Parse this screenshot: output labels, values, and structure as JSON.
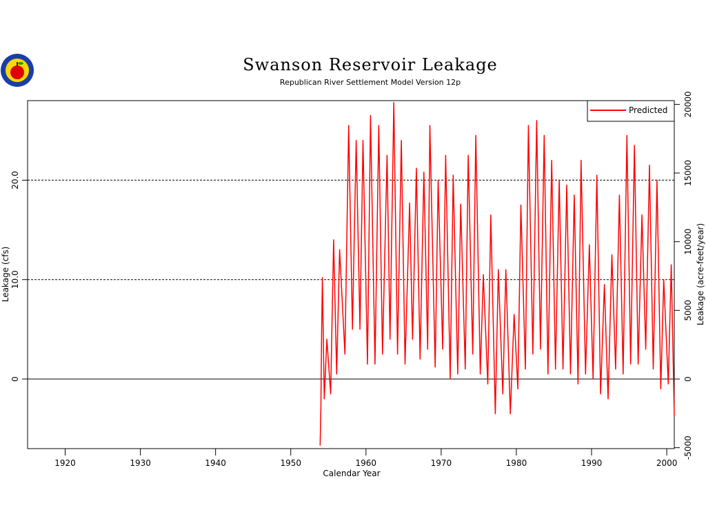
{
  "chart_data": {
    "type": "line",
    "title": "Swanson Reservoir Leakage",
    "subtitle": "Republican River Settlement Model Version 12p",
    "x_label": "Calendar Year",
    "y_label": "Leakage (cfs)",
    "y2_label": "Leakage (acre-feet/year)",
    "x": [
      1953.9,
      1954.0,
      1954.1,
      1954.2,
      1954.45,
      1954.8,
      1955.3,
      1955.7,
      1956.1,
      1956.5,
      1957.2,
      1957.7,
      1958.2,
      1958.7,
      1959.2,
      1959.6,
      1960.2,
      1960.6,
      1961.2,
      1961.7,
      1962.2,
      1962.8,
      1963.2,
      1963.7,
      1964.2,
      1964.7,
      1965.2,
      1965.8,
      1966.2,
      1966.7,
      1967.2,
      1967.7,
      1968.2,
      1968.5,
      1969.2,
      1969.6,
      1970.2,
      1970.6,
      1971.2,
      1971.6,
      1972.2,
      1972.6,
      1973.2,
      1973.6,
      1974.2,
      1974.6,
      1975.2,
      1975.6,
      1976.2,
      1976.6,
      1977.2,
      1977.6,
      1978.2,
      1978.6,
      1979.2,
      1979.7,
      1980.2,
      1980.6,
      1981.2,
      1981.6,
      1982.2,
      1982.7,
      1983.2,
      1983.7,
      1984.2,
      1984.7,
      1985.2,
      1985.7,
      1986.2,
      1986.7,
      1987.2,
      1987.7,
      1988.2,
      1988.6,
      1989.2,
      1989.7,
      1990.2,
      1990.7,
      1991.2,
      1991.7,
      1992.2,
      1992.7,
      1993.2,
      1993.7,
      1994.2,
      1994.7,
      1995.2,
      1995.7,
      1996.2,
      1996.7,
      1997.2,
      1997.7,
      1998.2,
      1998.7,
      1999.2,
      1999.6,
      2000.2,
      2000.6,
      2001.0
    ],
    "series": [
      {
        "name": "Predicted",
        "color": "#ff0000",
        "values": [
          -6.7,
          -3,
          4.8,
          10.2,
          -2,
          4,
          -1.5,
          14,
          0.5,
          13,
          2.5,
          25.5,
          5,
          24,
          5,
          24,
          1.5,
          26.5,
          1.5,
          25.5,
          2.5,
          22.5,
          4,
          27.8,
          2.5,
          24,
          1.5,
          17.7,
          4,
          21.2,
          2,
          20.8,
          3,
          25.5,
          1.2,
          20,
          3,
          22.5,
          0,
          20.5,
          0.5,
          17.6,
          1,
          22.5,
          2.5,
          24.5,
          0.5,
          10.5,
          -0.5,
          16.5,
          -3.5,
          11,
          -1.5,
          11,
          -3.5,
          6.5,
          -1,
          17.5,
          1,
          25.5,
          2.5,
          26,
          3,
          24.5,
          0.5,
          22,
          1,
          20,
          1,
          19.5,
          0.5,
          18.5,
          -0.5,
          22,
          0.5,
          13.5,
          0,
          20.5,
          -1.5,
          9.5,
          -2,
          12.5,
          1,
          18.5,
          0.5,
          24.5,
          1.5,
          23.5,
          1.5,
          16.5,
          3,
          21.5,
          1,
          20,
          -1,
          10,
          -0.5,
          11.5,
          -3.7
        ]
      }
    ],
    "xlim": [
      1915,
      2001
    ],
    "xticks": [
      1920,
      1930,
      1940,
      1950,
      1960,
      1970,
      1980,
      1990,
      2000
    ],
    "ylim": [
      -7,
      28
    ],
    "yticks": [
      0,
      {
        "value": 10,
        "label": "10.0"
      },
      {
        "value": 20,
        "label": "20.0"
      }
    ],
    "y2lim": [
      -5068,
      20272
    ],
    "y2ticks": [
      -5000,
      0,
      5000,
      10000,
      15000,
      20000
    ],
    "grid": true,
    "legend": "upper right"
  }
}
